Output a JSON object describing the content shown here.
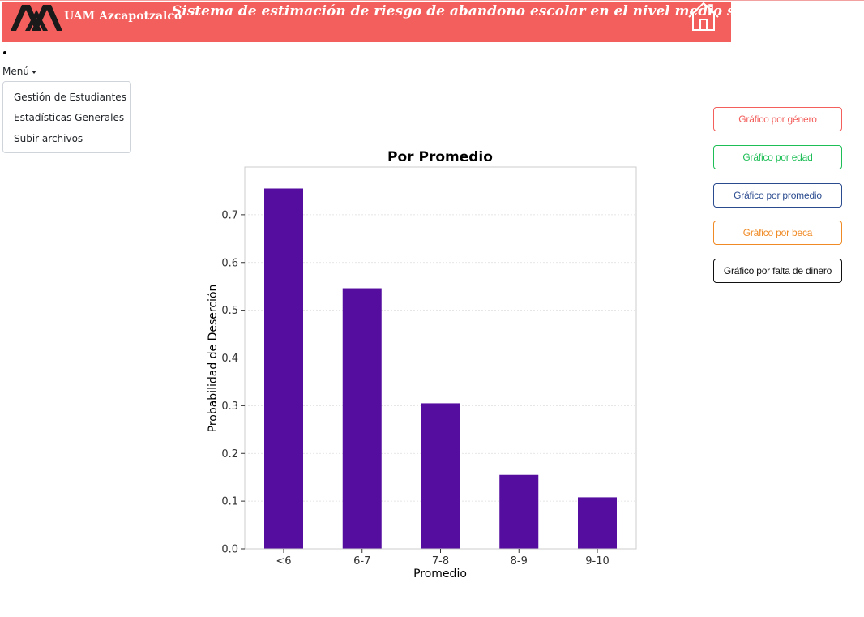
{
  "header": {
    "logo_text": "UAM Azcapotzalco",
    "title": "Sistema de estimación de riesgo de abandono escolar en el nivel medio superior",
    "brand_color": "#f25f5c"
  },
  "menu": {
    "toggle_label": "Menú",
    "items": [
      {
        "label": "Gestión de Estudiantes"
      },
      {
        "label": "Estadísticas Generales"
      },
      {
        "label": "Subir archivos"
      }
    ]
  },
  "chart_buttons": [
    {
      "label": "Gráfico por género",
      "color": "#f25f5c"
    },
    {
      "label": "Gráfico por edad",
      "color": "#1ebe57"
    },
    {
      "label": "Gráfico por promedio",
      "color": "#2b4b8f"
    },
    {
      "label": "Gráfico por beca",
      "color": "#f08a24"
    },
    {
      "label": "Gráfico por falta de dinero",
      "color": "#111111"
    }
  ],
  "chart_data": {
    "type": "bar",
    "title": "Por Promedio",
    "xlabel": "Promedio",
    "ylabel": "Probabilidad de Deserción",
    "categories": [
      "<6",
      "6-7",
      "7-8",
      "8-9",
      "9-10"
    ],
    "values": [
      0.755,
      0.546,
      0.305,
      0.155,
      0.108
    ],
    "ylim": [
      0,
      0.8
    ],
    "yticks": [
      0.0,
      0.1,
      0.2,
      0.3,
      0.4,
      0.5,
      0.6,
      0.7
    ],
    "ytick_labels": [
      "0.0",
      "0.1",
      "0.2",
      "0.3",
      "0.4",
      "0.5",
      "0.6",
      "0.7"
    ],
    "bar_color": "#540d9e",
    "grid": true
  }
}
